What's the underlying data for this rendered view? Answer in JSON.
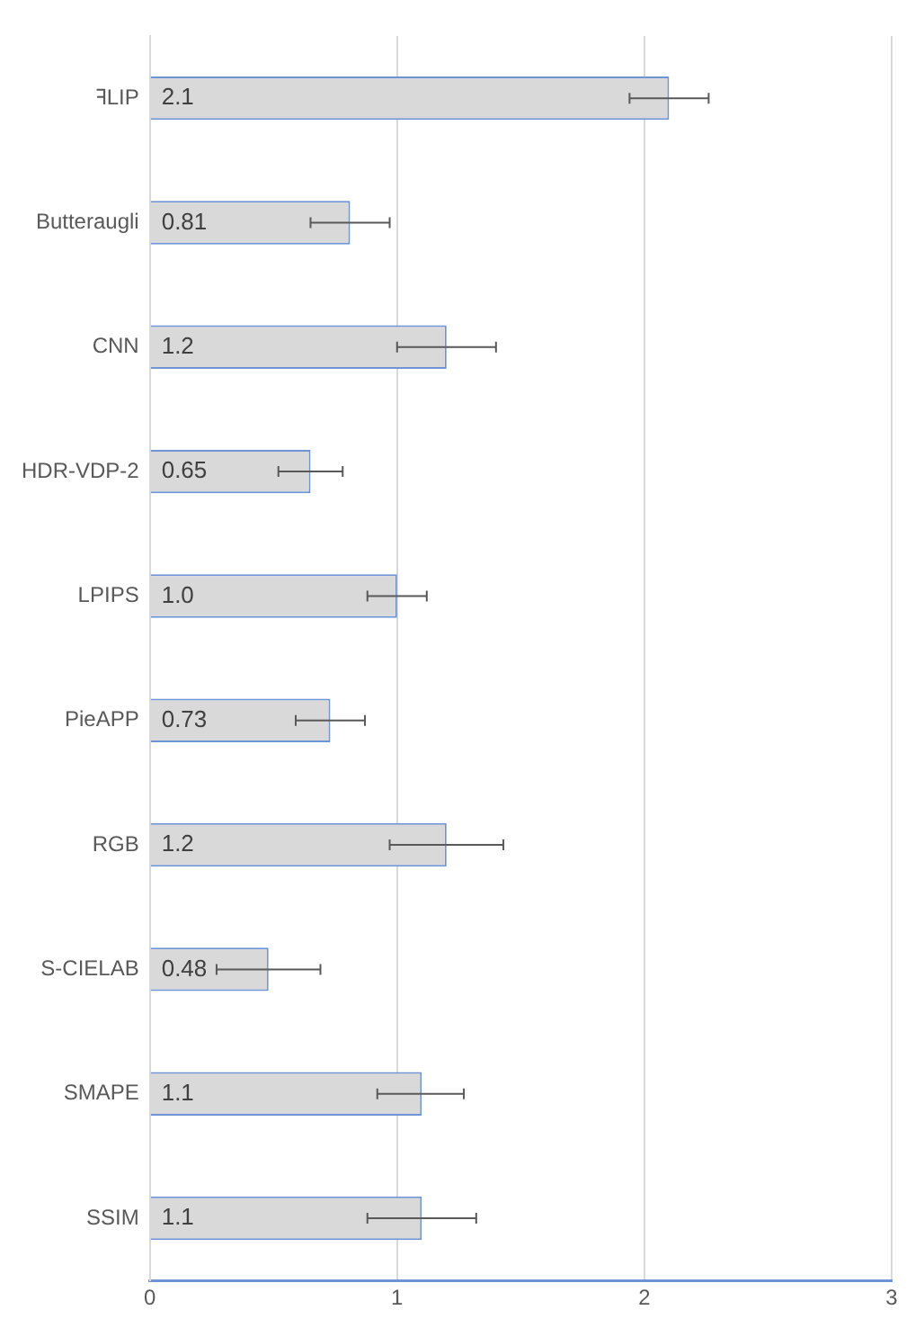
{
  "chart_data": {
    "type": "bar",
    "orientation": "horizontal",
    "categories": [
      "ꟻLIP",
      "Butteraugli",
      "CNN",
      "HDR-VDP-2",
      "LPIPS",
      "PieAPP",
      "RGB",
      "S-CIELAB",
      "SMAPE",
      "SSIM"
    ],
    "values": [
      2.1,
      0.81,
      1.2,
      0.65,
      1.0,
      0.73,
      1.2,
      0.48,
      1.1,
      1.1
    ],
    "value_labels": [
      "2.1",
      "0.81",
      "1.2",
      "0.65",
      "1.0",
      "0.73",
      "1.2",
      "0.48",
      "1.1",
      "1.1"
    ],
    "errors": [
      [
        1.94,
        2.26
      ],
      [
        0.65,
        0.97
      ],
      [
        1.0,
        1.4
      ],
      [
        0.52,
        0.78
      ],
      [
        0.88,
        1.12
      ],
      [
        0.59,
        0.87
      ],
      [
        0.97,
        1.43
      ],
      [
        0.27,
        0.69
      ],
      [
        0.92,
        1.27
      ],
      [
        0.88,
        1.32
      ]
    ],
    "color": "#d9d9d9",
    "xlim": [
      0,
      3
    ],
    "xticks": [
      0,
      1,
      2,
      3
    ],
    "grid": "x",
    "legend": false
  }
}
